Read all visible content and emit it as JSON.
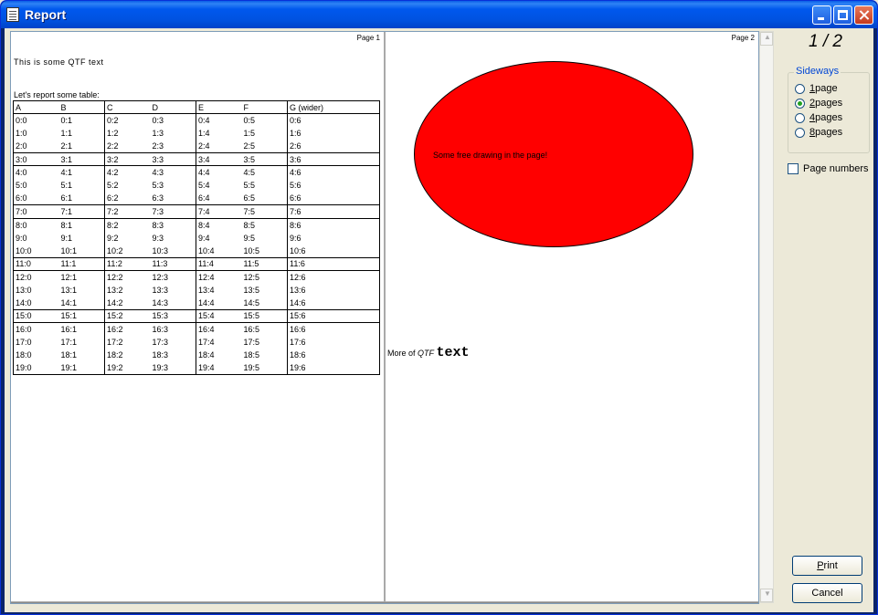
{
  "window": {
    "title": "Report"
  },
  "pages": {
    "page1_number": "Page 1",
    "page2_number": "Page 2"
  },
  "page1": {
    "qtf_text": "This is some QTF text",
    "table_intro": "Let's report some table:",
    "table_header": [
      "A",
      "B",
      "C",
      "D",
      "E",
      "F",
      "G (wider)"
    ],
    "table_rows": [
      [
        "0:0",
        "0:1",
        "0:2",
        "0:3",
        "0:4",
        "0:5",
        "0:6"
      ],
      [
        "1:0",
        "1:1",
        "1:2",
        "1:3",
        "1:4",
        "1:5",
        "1:6"
      ],
      [
        "2:0",
        "2:1",
        "2:2",
        "2:3",
        "2:4",
        "2:5",
        "2:6"
      ],
      [
        "3:0",
        "3:1",
        "3:2",
        "3:3",
        "3:4",
        "3:5",
        "3:6"
      ],
      [
        "4:0",
        "4:1",
        "4:2",
        "4:3",
        "4:4",
        "4:5",
        "4:6"
      ],
      [
        "5:0",
        "5:1",
        "5:2",
        "5:3",
        "5:4",
        "5:5",
        "5:6"
      ],
      [
        "6:0",
        "6:1",
        "6:2",
        "6:3",
        "6:4",
        "6:5",
        "6:6"
      ],
      [
        "7:0",
        "7:1",
        "7:2",
        "7:3",
        "7:4",
        "7:5",
        "7:6"
      ],
      [
        "8:0",
        "8:1",
        "8:2",
        "8:3",
        "8:4",
        "8:5",
        "8:6"
      ],
      [
        "9:0",
        "9:1",
        "9:2",
        "9:3",
        "9:4",
        "9:5",
        "9:6"
      ],
      [
        "10:0",
        "10:1",
        "10:2",
        "10:3",
        "10:4",
        "10:5",
        "10:6"
      ],
      [
        "11:0",
        "11:1",
        "11:2",
        "11:3",
        "11:4",
        "11:5",
        "11:6"
      ],
      [
        "12:0",
        "12:1",
        "12:2",
        "12:3",
        "12:4",
        "12:5",
        "12:6"
      ],
      [
        "13:0",
        "13:1",
        "13:2",
        "13:3",
        "13:4",
        "13:5",
        "13:6"
      ],
      [
        "14:0",
        "14:1",
        "14:2",
        "14:3",
        "14:4",
        "14:5",
        "14:6"
      ],
      [
        "15:0",
        "15:1",
        "15:2",
        "15:3",
        "15:4",
        "15:5",
        "15:6"
      ],
      [
        "16:0",
        "16:1",
        "16:2",
        "16:3",
        "16:4",
        "16:5",
        "16:6"
      ],
      [
        "17:0",
        "17:1",
        "17:2",
        "17:3",
        "17:4",
        "17:5",
        "17:6"
      ],
      [
        "18:0",
        "18:1",
        "18:2",
        "18:3",
        "18:4",
        "18:5",
        "18:6"
      ],
      [
        "19:0",
        "19:1",
        "19:2",
        "19:3",
        "19:4",
        "19:5",
        "19:6"
      ]
    ]
  },
  "page2": {
    "ellipse_color": "#ff0000",
    "drawing_text": "Some free drawing in the page!",
    "more_prefix": "More of ",
    "more_italic": "QTF",
    "more_big": "text"
  },
  "side": {
    "page_counter": "1 / 2",
    "group_title": "Sideways",
    "options": [
      {
        "accel": "1",
        "rest": " page",
        "selected": false
      },
      {
        "accel": "2",
        "rest": " pages",
        "selected": true
      },
      {
        "accel": "4",
        "rest": " pages",
        "selected": false
      },
      {
        "accel": "8",
        "rest": " pages",
        "selected": false
      }
    ],
    "page_numbers_label": "Page numbers",
    "page_numbers_checked": false,
    "print_accel": "P",
    "print_rest": "rint",
    "cancel_label": "Cancel"
  }
}
